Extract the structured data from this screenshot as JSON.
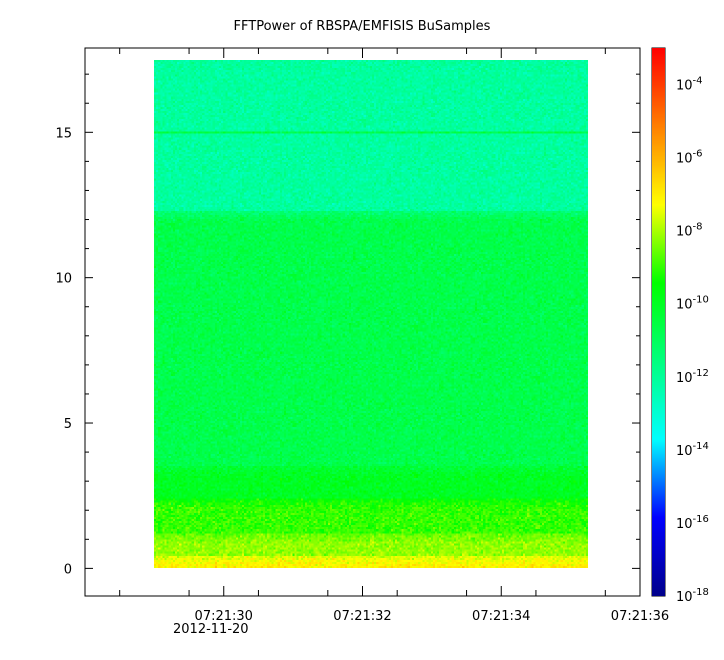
{
  "chart_data": {
    "type": "heatmap",
    "title": "FFTPower of RBSPA/EMFISIS  BuSamples",
    "xlabel": "",
    "ylabel": "",
    "date_label": "2012-11-20",
    "x_ticks": [
      "07:21:30",
      "07:21:32",
      "07:21:34",
      "07:21:36"
    ],
    "x_tick_values_s": [
      30,
      32,
      34,
      36
    ],
    "xlim_s": [
      28.0,
      36.0
    ],
    "data_xlim_s": [
      29.0,
      35.25
    ],
    "y_ticks": [
      0,
      5,
      10,
      15
    ],
    "ylim": [
      -0.95,
      17.9
    ],
    "data_ylim": [
      0,
      17.5
    ],
    "colorbar": {
      "scale": "log",
      "range": [
        1e-18,
        0.001
      ],
      "tick_exponents": [
        -18,
        -16,
        -14,
        -12,
        -10,
        -8,
        -6,
        -4
      ],
      "colormap": [
        "#00008b",
        "#0000ff",
        "#00ffff",
        "#00ff7f",
        "#00ff00",
        "#ffff00",
        "#ff7f00",
        "#ff0000"
      ]
    },
    "spectrogram_bands": [
      {
        "y_from": 0.0,
        "y_to": 0.4,
        "log10_power": -7.0
      },
      {
        "y_from": 0.4,
        "y_to": 1.2,
        "log10_power": -8.2
      },
      {
        "y_from": 1.2,
        "y_to": 2.4,
        "log10_power": -9.0
      },
      {
        "y_from": 2.4,
        "y_to": 3.5,
        "log10_power": -10.0
      },
      {
        "y_from": 3.5,
        "y_to": 12.3,
        "log10_power": -10.7
      },
      {
        "y_from": 12.3,
        "y_to": 17.5,
        "log10_power": -12.1
      }
    ],
    "line_feature": {
      "y": 15.0,
      "log10_power": -10.6
    }
  }
}
